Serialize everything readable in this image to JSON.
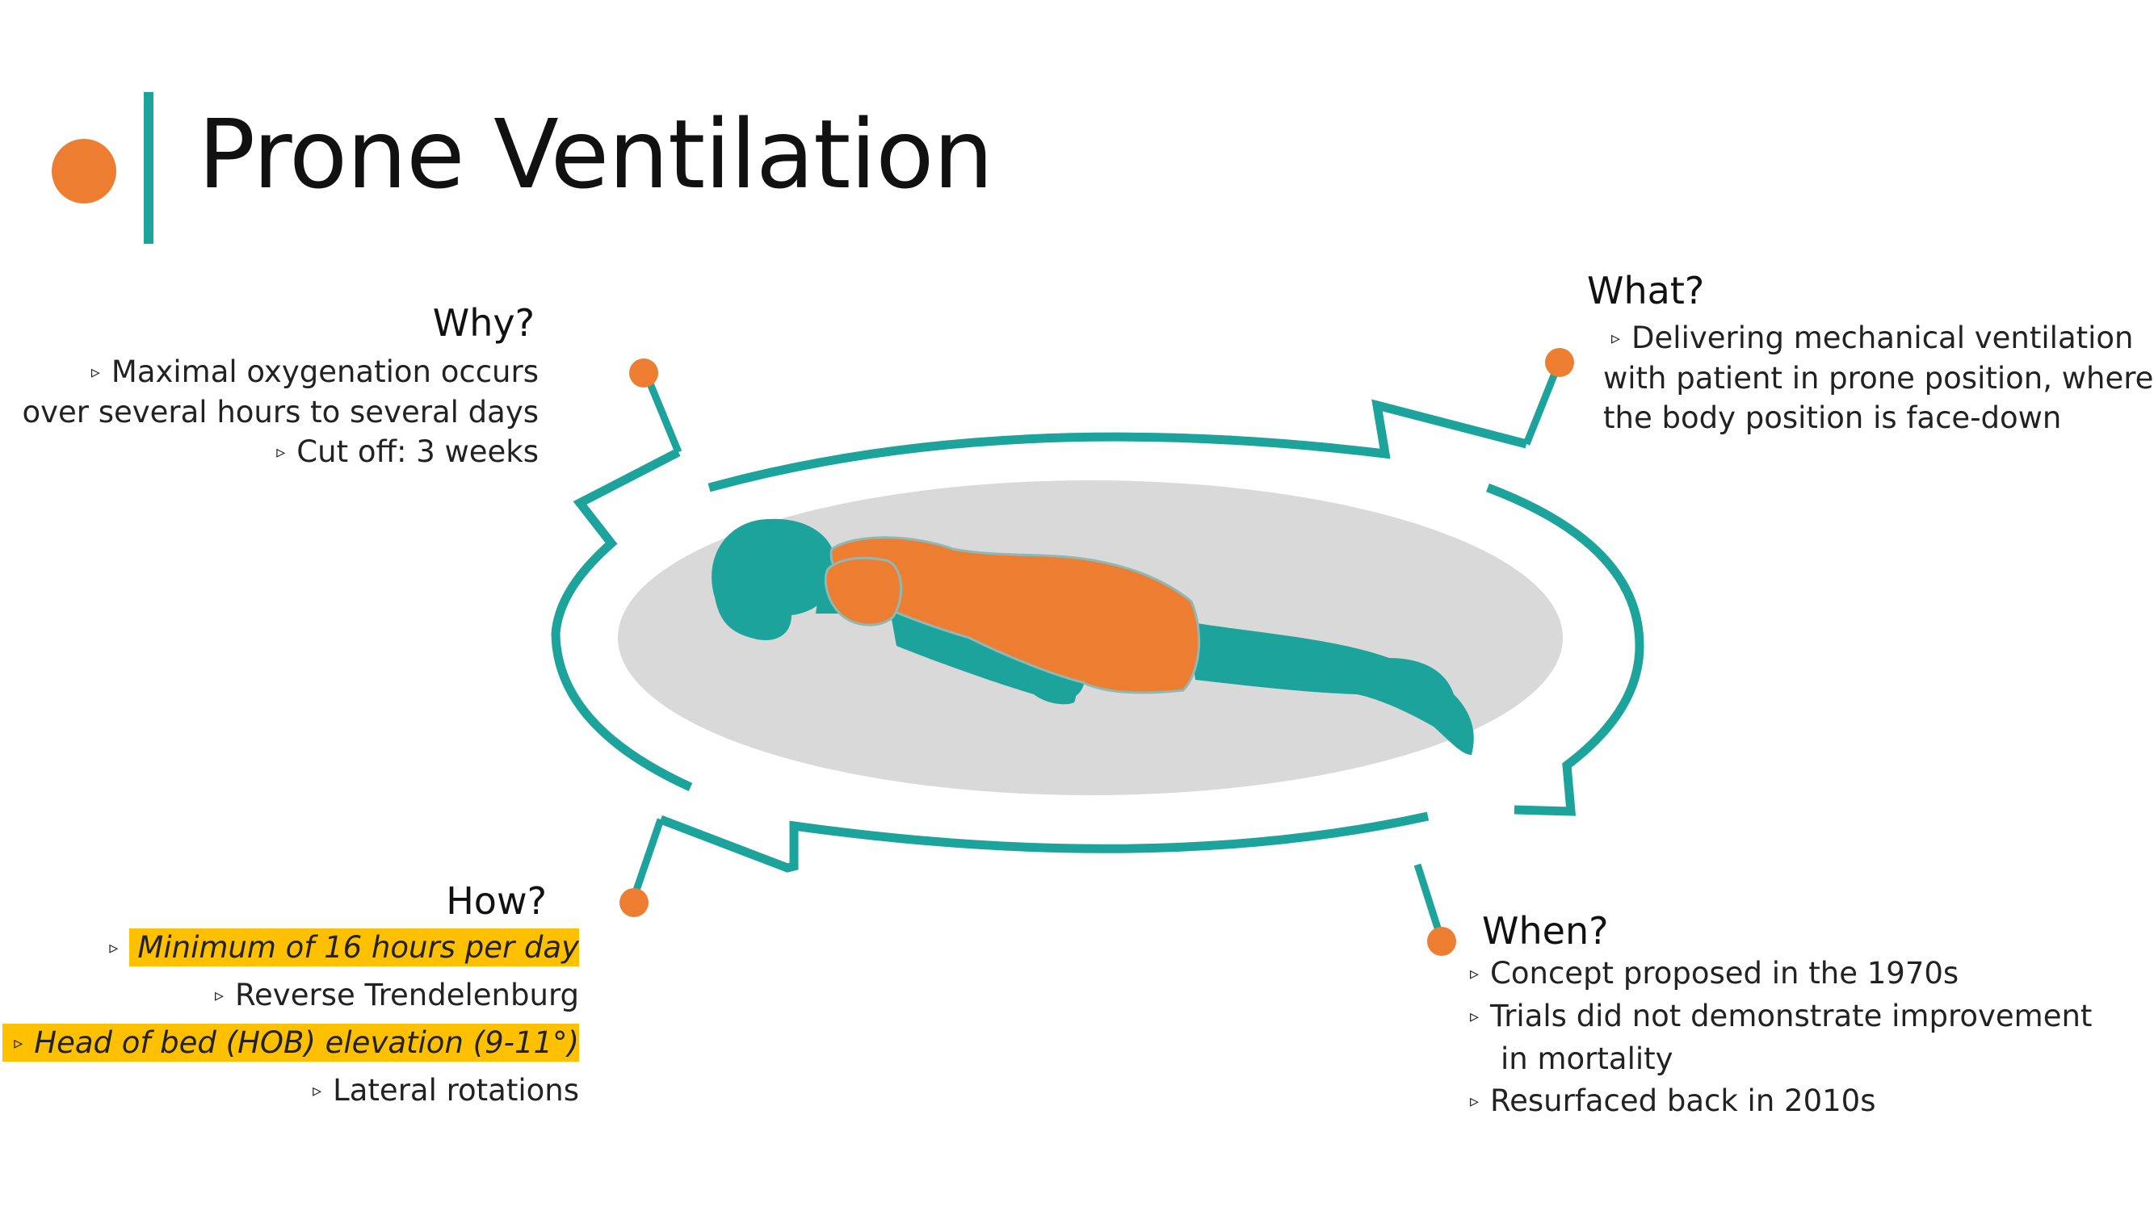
{
  "title": "Prone Ventilation",
  "colors": {
    "accent_orange": "#ED7D31",
    "accent_teal": "#1BA39C",
    "highlight": "#FFC000",
    "oval_gray": "#D9D9D9"
  },
  "bullet_icon": "triangle-right-outline",
  "why": {
    "heading": "Why?",
    "lines": [
      "Maximal oxygenation occurs",
      "over several hours to several days",
      "Cut off: 3 weeks"
    ]
  },
  "what": {
    "heading": "What?",
    "lines": [
      "Delivering mechanical ventilation",
      "with patient in prone position, where",
      "the body position is face-down"
    ]
  },
  "how": {
    "heading": "How?",
    "items": [
      {
        "text": "Minimum of 16 hours per day",
        "highlighted": true
      },
      {
        "text": "Reverse Trendelenburg",
        "highlighted": false
      },
      {
        "text": "Head of bed (HOB) elevation (9-11°)",
        "highlighted": true
      },
      {
        "text": "Lateral rotations",
        "highlighted": false
      }
    ]
  },
  "when": {
    "heading": "When?",
    "items": [
      "Concept proposed in the 1970s",
      "Trials did not demonstrate improvement",
      "in mortality",
      "Resurfaced back in 2010s"
    ]
  }
}
